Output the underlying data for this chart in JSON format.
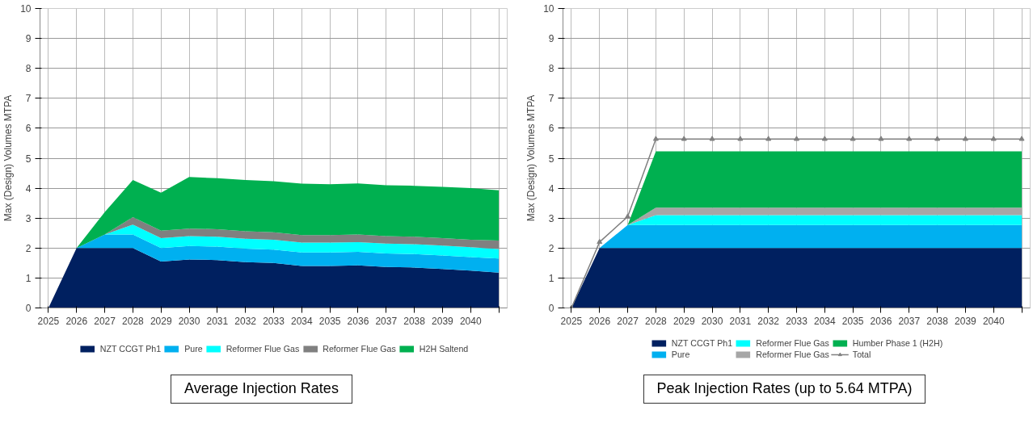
{
  "chart_data": [
    {
      "type": "area",
      "stacked": true,
      "title": "Average Injection Rates",
      "ylabel": "Max (Design) Volumes MTPA",
      "categories": [
        "2025",
        "2026",
        "2027",
        "2028",
        "2029",
        "2030",
        "2031",
        "2032",
        "2033",
        "2034",
        "2035",
        "2036",
        "2037",
        "2038",
        "2039",
        "2040",
        null
      ],
      "ylim": [
        0,
        10
      ],
      "yticks": [
        0,
        1,
        2,
        3,
        4,
        5,
        6,
        7,
        8,
        9,
        10
      ],
      "grid": true,
      "legend": "bottom",
      "series": [
        {
          "name": "NZT CCGT Ph1",
          "color": "#002060",
          "values": [
            0,
            2,
            2,
            2,
            1.55,
            1.62,
            1.6,
            1.53,
            1.5,
            1.4,
            1.4,
            1.42,
            1.37,
            1.35,
            1.3,
            1.25,
            1.18
          ]
        },
        {
          "name": "Pure",
          "color": "#00b0f0",
          "values": [
            0,
            0,
            0.45,
            0.45,
            0.45,
            0.45,
            0.45,
            0.45,
            0.45,
            0.45,
            0.45,
            0.45,
            0.45,
            0.45,
            0.45,
            0.45,
            0.47
          ]
        },
        {
          "name": "Reformer Flue Gas",
          "color": "#00ffff",
          "values": [
            0,
            0,
            0,
            0.33,
            0.33,
            0.33,
            0.33,
            0.33,
            0.33,
            0.33,
            0.33,
            0.33,
            0.33,
            0.33,
            0.33,
            0.33,
            0.32
          ]
        },
        {
          "name": "Reformer Flue Gas",
          "color": "#808080",
          "values": [
            0,
            0,
            0,
            0.25,
            0.25,
            0.25,
            0.25,
            0.25,
            0.25,
            0.25,
            0.25,
            0.25,
            0.25,
            0.25,
            0.25,
            0.25,
            0.28
          ]
        },
        {
          "name": "H2H Saltend",
          "color": "#00b050",
          "values": [
            0,
            0,
            0.75,
            1.24,
            1.27,
            1.72,
            1.7,
            1.71,
            1.7,
            1.72,
            1.7,
            1.71,
            1.7,
            1.7,
            1.71,
            1.72,
            1.68
          ]
        }
      ]
    },
    {
      "type": "area",
      "stacked": true,
      "title": "Peak Injection Rates (up to 5.64 MTPA)",
      "ylabel": "Max (Design) Volumes MTPA",
      "categories": [
        "2025",
        "2026",
        "2027",
        "2028",
        "2029",
        "2030",
        "2031",
        "2032",
        "2033",
        "2034",
        "2035",
        "2036",
        "2037",
        "2038",
        "2039",
        "2040",
        null
      ],
      "ylim": [
        0,
        10
      ],
      "yticks": [
        0,
        1,
        2,
        3,
        4,
        5,
        6,
        7,
        8,
        9,
        10
      ],
      "grid": true,
      "legend": "bottom",
      "series": [
        {
          "name": "NZT CCGT Ph1",
          "color": "#002060",
          "values": [
            0,
            2,
            2,
            2,
            2,
            2,
            2,
            2,
            2,
            2,
            2,
            2,
            2,
            2,
            2,
            2,
            2
          ]
        },
        {
          "name": "Pure",
          "color": "#00b0f0",
          "values": [
            0,
            0,
            0.77,
            0.77,
            0.77,
            0.77,
            0.77,
            0.77,
            0.77,
            0.77,
            0.77,
            0.77,
            0.77,
            0.77,
            0.77,
            0.77,
            0.77
          ]
        },
        {
          "name": "Reformer Flue Gas",
          "color": "#00ffff",
          "values": [
            0,
            0,
            0,
            0.33,
            0.33,
            0.33,
            0.33,
            0.33,
            0.33,
            0.33,
            0.33,
            0.33,
            0.33,
            0.33,
            0.33,
            0.33,
            0.33
          ]
        },
        {
          "name": "Reformer Flue Gas",
          "color": "#a6a6a6",
          "values": [
            0,
            0,
            0,
            0.25,
            0.25,
            0.25,
            0.25,
            0.25,
            0.25,
            0.25,
            0.25,
            0.25,
            0.25,
            0.25,
            0.25,
            0.25,
            0.25
          ]
        },
        {
          "name": "Humber Phase 1 (H2H)",
          "color": "#00b050",
          "values": [
            0,
            0,
            0,
            1.88,
            1.88,
            1.88,
            1.88,
            1.88,
            1.88,
            1.88,
            1.88,
            1.88,
            1.88,
            1.88,
            1.88,
            1.88,
            1.88
          ]
        },
        {
          "name": "Total",
          "type": "line",
          "color": "#808080",
          "marker": "triangle",
          "values": [
            0,
            2.2,
            3.05,
            5.64,
            5.64,
            5.64,
            5.64,
            5.64,
            5.64,
            5.64,
            5.64,
            5.64,
            5.64,
            5.64,
            5.64,
            5.64,
            5.64
          ]
        }
      ]
    }
  ]
}
